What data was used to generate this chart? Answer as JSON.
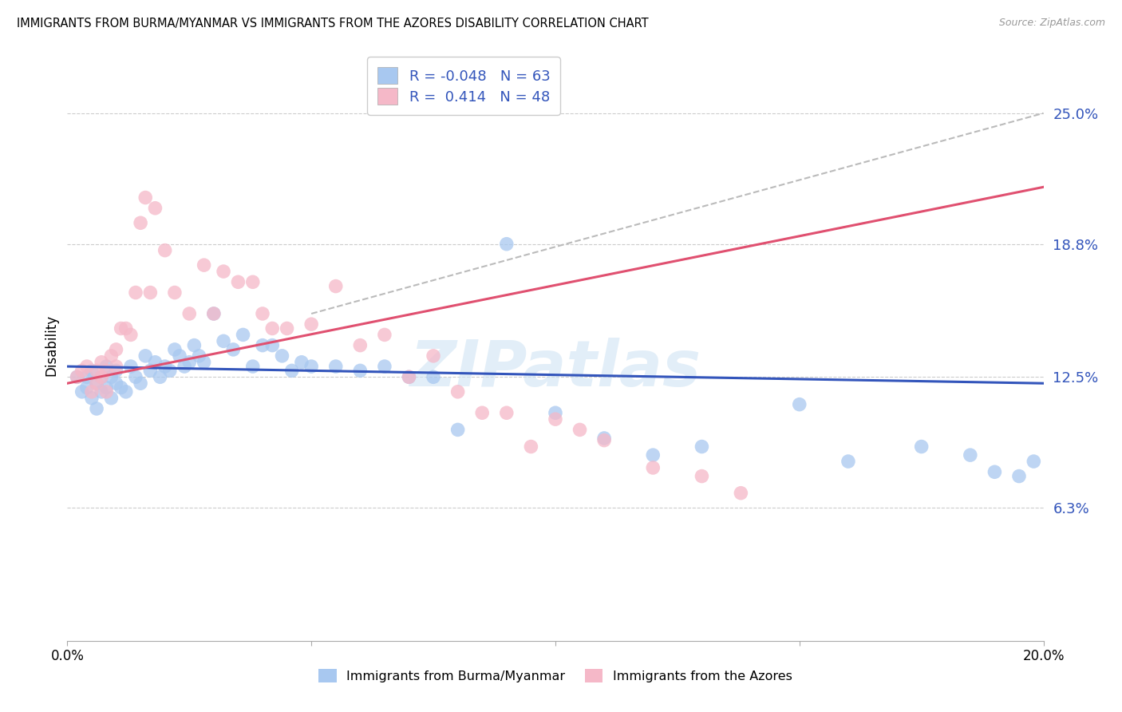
{
  "title": "IMMIGRANTS FROM BURMA/MYANMAR VS IMMIGRANTS FROM THE AZORES DISABILITY CORRELATION CHART",
  "source": "Source: ZipAtlas.com",
  "ylabel": "Disability",
  "ytick_labels": [
    "6.3%",
    "12.5%",
    "18.8%",
    "25.0%"
  ],
  "ytick_values": [
    0.063,
    0.125,
    0.188,
    0.25
  ],
  "xlim": [
    0.0,
    0.2
  ],
  "ylim": [
    0.0,
    0.28
  ],
  "legend_blue_label": "R = -0.048   N = 63",
  "legend_pink_label": "R =  0.414   N = 48",
  "legend_label_blue": "Immigrants from Burma/Myanmar",
  "legend_label_pink": "Immigrants from the Azores",
  "blue_color": "#A8C8F0",
  "pink_color": "#F5B8C8",
  "blue_line_color": "#3355BB",
  "pink_line_color": "#E05070",
  "dashed_line_color": "#BBBBBB",
  "watermark": "ZIPatlas",
  "blue_scatter_x": [
    0.002,
    0.003,
    0.004,
    0.004,
    0.005,
    0.005,
    0.006,
    0.006,
    0.007,
    0.007,
    0.008,
    0.008,
    0.009,
    0.009,
    0.01,
    0.01,
    0.011,
    0.012,
    0.013,
    0.014,
    0.015,
    0.016,
    0.017,
    0.018,
    0.019,
    0.02,
    0.021,
    0.022,
    0.023,
    0.024,
    0.025,
    0.026,
    0.027,
    0.028,
    0.03,
    0.032,
    0.034,
    0.036,
    0.038,
    0.04,
    0.042,
    0.044,
    0.046,
    0.048,
    0.05,
    0.055,
    0.06,
    0.065,
    0.07,
    0.075,
    0.08,
    0.09,
    0.1,
    0.11,
    0.12,
    0.13,
    0.15,
    0.16,
    0.175,
    0.185,
    0.19,
    0.195,
    0.198
  ],
  "blue_scatter_y": [
    0.125,
    0.118,
    0.12,
    0.125,
    0.115,
    0.128,
    0.11,
    0.122,
    0.118,
    0.125,
    0.13,
    0.12,
    0.115,
    0.125,
    0.128,
    0.122,
    0.12,
    0.118,
    0.13,
    0.125,
    0.122,
    0.135,
    0.128,
    0.132,
    0.125,
    0.13,
    0.128,
    0.138,
    0.135,
    0.13,
    0.132,
    0.14,
    0.135,
    0.132,
    0.155,
    0.142,
    0.138,
    0.145,
    0.13,
    0.14,
    0.14,
    0.135,
    0.128,
    0.132,
    0.13,
    0.13,
    0.128,
    0.13,
    0.125,
    0.125,
    0.1,
    0.188,
    0.108,
    0.096,
    0.088,
    0.092,
    0.112,
    0.085,
    0.092,
    0.088,
    0.08,
    0.078,
    0.085
  ],
  "pink_scatter_x": [
    0.002,
    0.003,
    0.004,
    0.005,
    0.006,
    0.006,
    0.007,
    0.007,
    0.008,
    0.008,
    0.009,
    0.01,
    0.01,
    0.011,
    0.012,
    0.013,
    0.014,
    0.015,
    0.016,
    0.017,
    0.018,
    0.02,
    0.022,
    0.025,
    0.028,
    0.03,
    0.032,
    0.035,
    0.038,
    0.04,
    0.042,
    0.045,
    0.05,
    0.055,
    0.06,
    0.065,
    0.07,
    0.075,
    0.08,
    0.085,
    0.09,
    0.095,
    0.1,
    0.105,
    0.11,
    0.12,
    0.13,
    0.138
  ],
  "pink_scatter_y": [
    0.125,
    0.128,
    0.13,
    0.118,
    0.122,
    0.128,
    0.125,
    0.132,
    0.128,
    0.118,
    0.135,
    0.13,
    0.138,
    0.148,
    0.148,
    0.145,
    0.165,
    0.198,
    0.21,
    0.165,
    0.205,
    0.185,
    0.165,
    0.155,
    0.178,
    0.155,
    0.175,
    0.17,
    0.17,
    0.155,
    0.148,
    0.148,
    0.15,
    0.168,
    0.14,
    0.145,
    0.125,
    0.135,
    0.118,
    0.108,
    0.108,
    0.092,
    0.105,
    0.1,
    0.095,
    0.082,
    0.078,
    0.07
  ],
  "blue_line_x": [
    0.0,
    0.2
  ],
  "blue_line_y": [
    0.13,
    0.122
  ],
  "pink_line_x": [
    0.0,
    0.2
  ],
  "pink_line_y": [
    0.122,
    0.215
  ],
  "dashed_line_x": [
    0.05,
    0.2
  ],
  "dashed_line_y": [
    0.155,
    0.25
  ]
}
